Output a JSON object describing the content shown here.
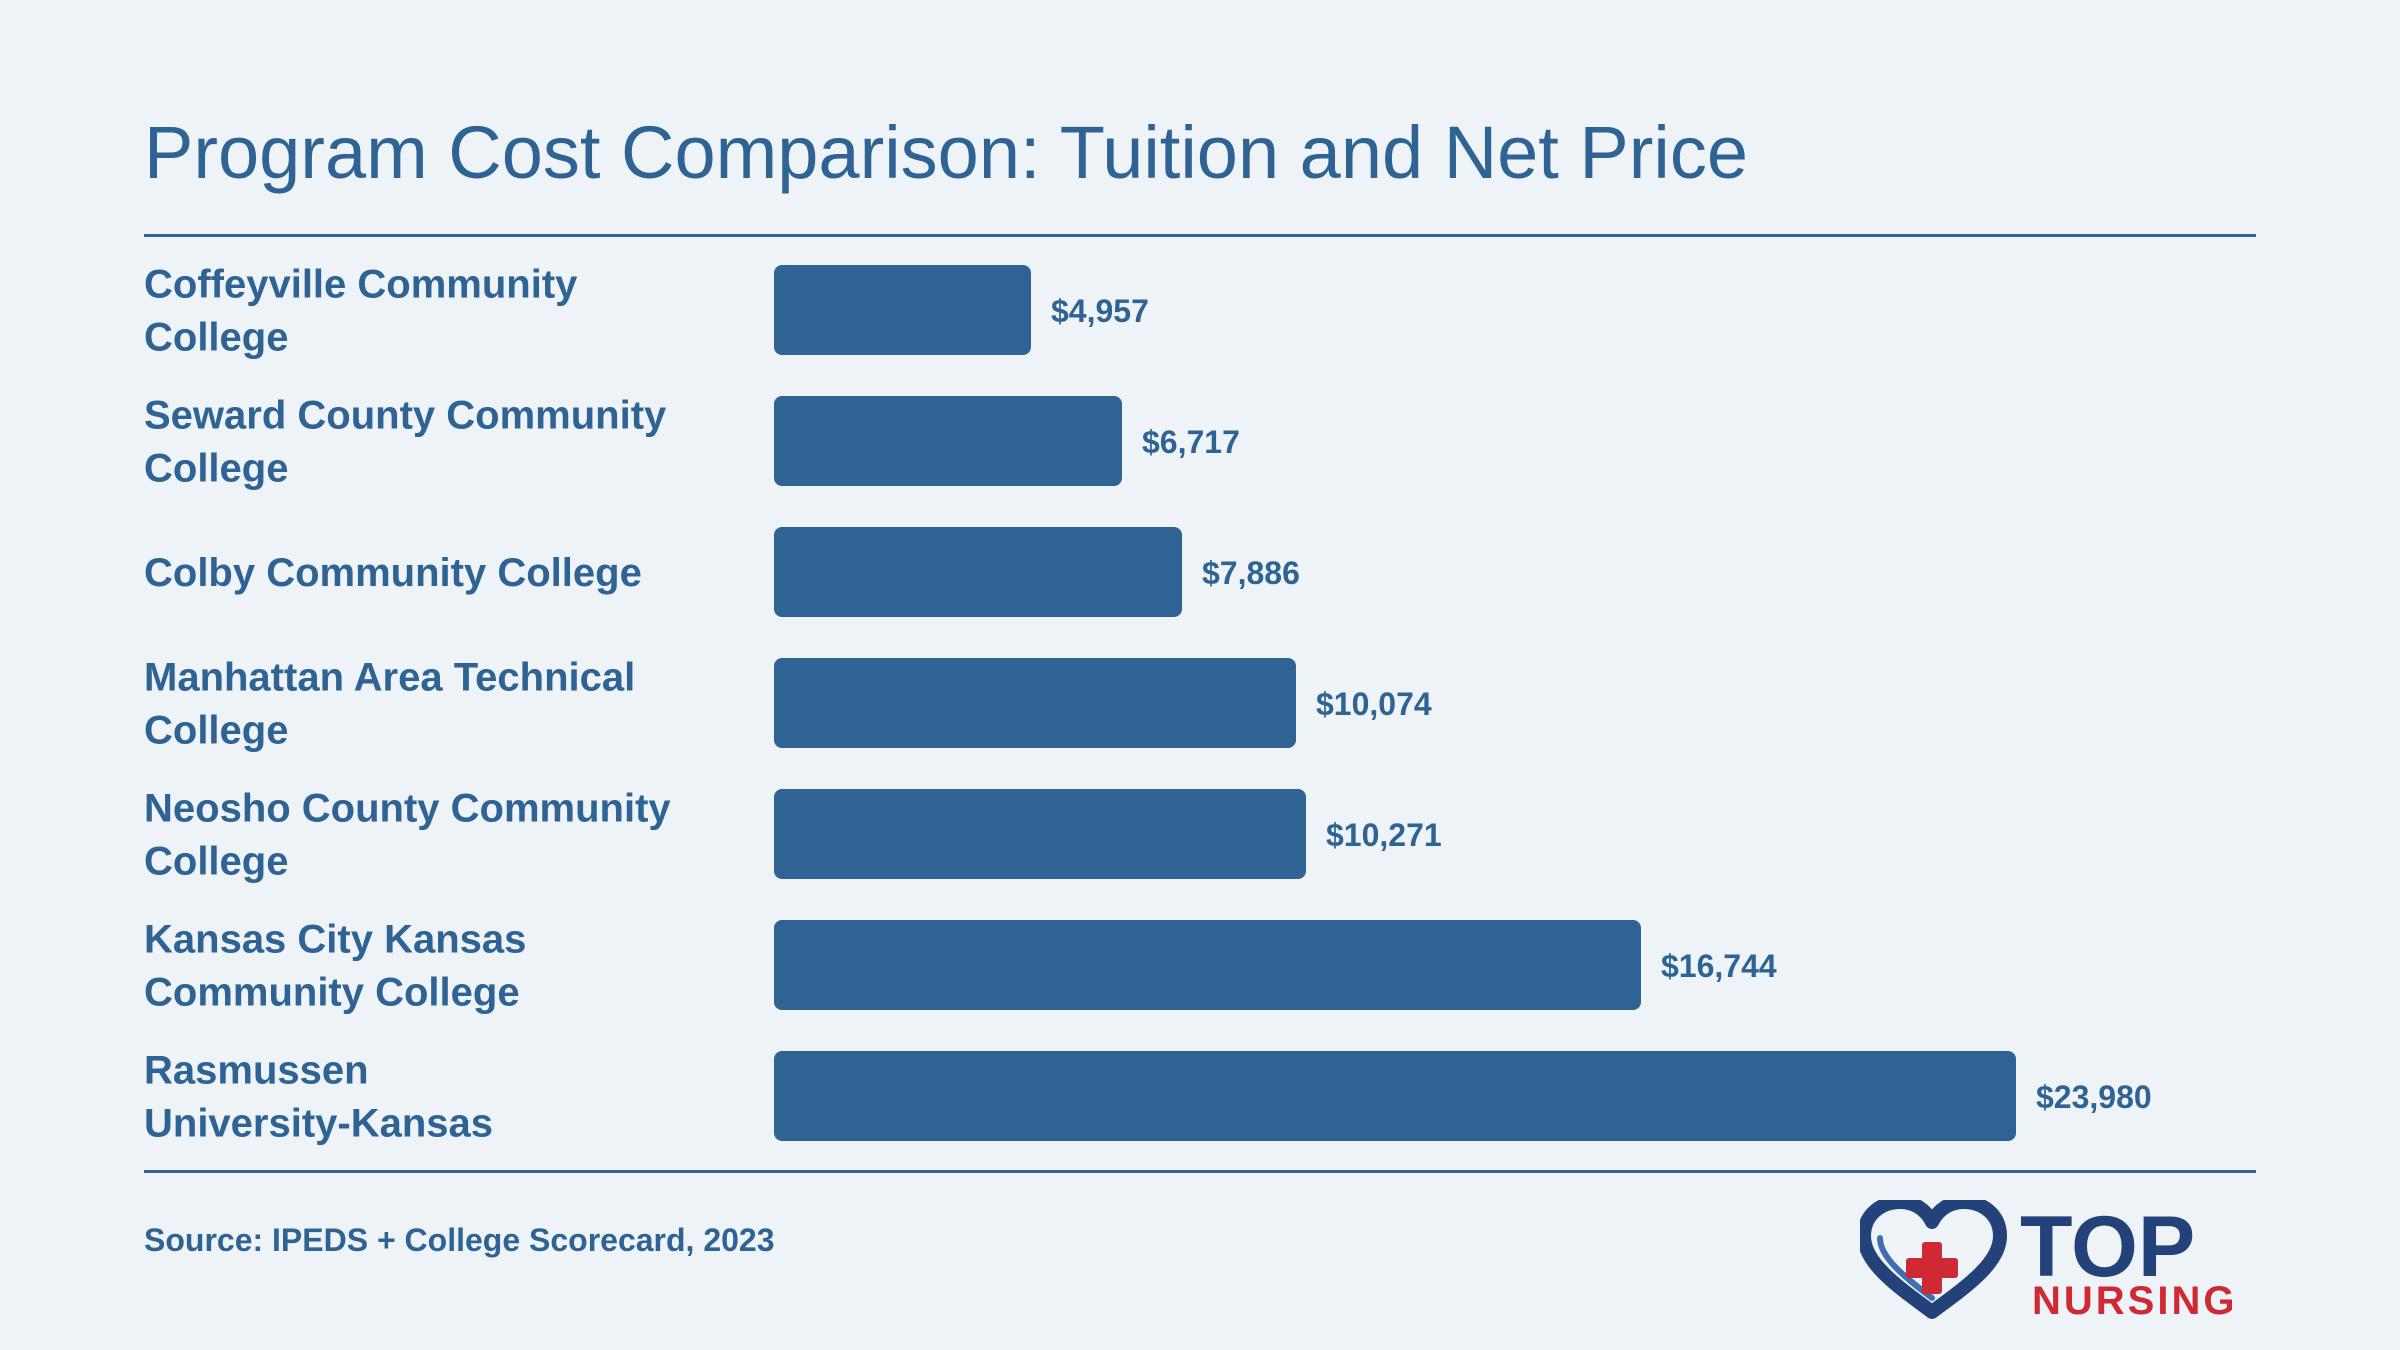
{
  "title": "Program Cost Comparison: Tuition and Net Price",
  "source": "Source: IPEDS + College Scorecard, 2023",
  "logo": {
    "line1": "TOP",
    "line2": "NURSING",
    "icon": "heart-plus-icon"
  },
  "colors": {
    "background": "#eef3f7",
    "bar": "#2e6394",
    "text": "#2e6394",
    "logo_navy": "#24427a",
    "logo_red": "#cf2a33"
  },
  "chart_data": {
    "type": "bar",
    "orientation": "horizontal",
    "title": "Program Cost Comparison: Tuition and Net Price",
    "categories": [
      "Coffeyville Community College",
      "Seward County Community College",
      "Colby Community College",
      "Manhattan Area Technical College",
      "Neosho County Community College",
      "Kansas City Kansas Community College",
      "Rasmussen University-Kansas"
    ],
    "category_lines": [
      [
        "Coffeyville Community",
        "College"
      ],
      [
        "Seward County Community",
        "College"
      ],
      [
        "Colby Community College"
      ],
      [
        "Manhattan Area Technical",
        "College"
      ],
      [
        "Neosho County Community",
        "College"
      ],
      [
        "Kansas City Kansas",
        "Community College"
      ],
      [
        "Rasmussen",
        "University-Kansas"
      ]
    ],
    "values": [
      4957,
      6717,
      7886,
      10074,
      10271,
      16744,
      23980
    ],
    "value_labels": [
      "$4,957",
      "$6,717",
      "$7,886",
      "$10,074",
      "$10,271",
      "$16,744",
      "$23,980"
    ],
    "xlabel": "",
    "ylabel": "",
    "grid": false,
    "legend": "none"
  }
}
